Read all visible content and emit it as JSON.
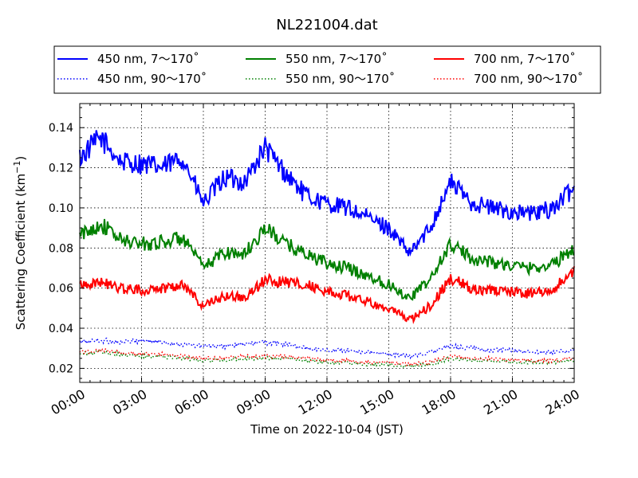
{
  "chart_data": {
    "type": "line",
    "title": "NL221004.dat",
    "xlabel": "Time on 2022-10-04 (JST)",
    "ylabel": "Scattering Coefficient (km",
    "ylabel_sup": "−1",
    "ylabel_end": ")",
    "xlim": [
      0,
      24
    ],
    "ylim": [
      0.013,
      0.152
    ],
    "grid": true,
    "legend_position": "top",
    "x_ticks": [
      {
        "value": 0,
        "label": "00:00"
      },
      {
        "value": 3,
        "label": "03:00"
      },
      {
        "value": 6,
        "label": "06:00"
      },
      {
        "value": 9,
        "label": "09:00"
      },
      {
        "value": 12,
        "label": "12:00"
      },
      {
        "value": 15,
        "label": "15:00"
      },
      {
        "value": 18,
        "label": "18:00"
      },
      {
        "value": 21,
        "label": "21:00"
      },
      {
        "value": 24,
        "label": "24:00"
      }
    ],
    "y_ticks": [
      {
        "value": 0.02,
        "label": "0.02"
      },
      {
        "value": 0.04,
        "label": "0.04"
      },
      {
        "value": 0.06,
        "label": "0.06"
      },
      {
        "value": 0.08,
        "label": "0.08"
      },
      {
        "value": 0.1,
        "label": "0.10"
      },
      {
        "value": 0.12,
        "label": "0.12"
      },
      {
        "value": 0.14,
        "label": "0.14"
      }
    ],
    "x": [
      0,
      1,
      2,
      3,
      4,
      5,
      6,
      7,
      8,
      9,
      10,
      11,
      12,
      13,
      14,
      15,
      16,
      17,
      18,
      19,
      20,
      21,
      22,
      23,
      24
    ],
    "series": [
      {
        "name": "450 nm, 7～170˚",
        "color": "#0000ff",
        "style": "solid",
        "values": [
          0.125,
          0.135,
          0.123,
          0.122,
          0.12,
          0.125,
          0.102,
          0.115,
          0.113,
          0.13,
          0.117,
          0.106,
          0.102,
          0.1,
          0.095,
          0.09,
          0.077,
          0.09,
          0.113,
          0.103,
          0.1,
          0.098,
          0.097,
          0.1,
          0.11
        ]
      },
      {
        "name": "450 nm, 90～170˚",
        "color": "#0000ff",
        "style": "dotted",
        "values": [
          0.033,
          0.034,
          0.033,
          0.034,
          0.033,
          0.032,
          0.031,
          0.031,
          0.032,
          0.033,
          0.032,
          0.03,
          0.029,
          0.029,
          0.028,
          0.027,
          0.026,
          0.028,
          0.031,
          0.03,
          0.029,
          0.029,
          0.028,
          0.028,
          0.029
        ]
      },
      {
        "name": "550 nm, 7～170˚",
        "color": "#008000",
        "style": "solid",
        "values": [
          0.086,
          0.092,
          0.084,
          0.082,
          0.083,
          0.085,
          0.07,
          0.078,
          0.077,
          0.09,
          0.082,
          0.077,
          0.072,
          0.07,
          0.066,
          0.062,
          0.055,
          0.064,
          0.082,
          0.075,
          0.073,
          0.071,
          0.07,
          0.072,
          0.08
        ]
      },
      {
        "name": "550 nm, 90～170˚",
        "color": "#008000",
        "style": "dotted",
        "values": [
          0.027,
          0.028,
          0.027,
          0.026,
          0.026,
          0.025,
          0.024,
          0.024,
          0.025,
          0.025,
          0.025,
          0.024,
          0.023,
          0.023,
          0.022,
          0.022,
          0.021,
          0.022,
          0.025,
          0.024,
          0.024,
          0.023,
          0.023,
          0.023,
          0.024
        ]
      },
      {
        "name": "700 nm, 7～170˚",
        "color": "#ff0000",
        "style": "solid",
        "values": [
          0.062,
          0.063,
          0.06,
          0.059,
          0.06,
          0.062,
          0.051,
          0.056,
          0.055,
          0.064,
          0.063,
          0.062,
          0.058,
          0.056,
          0.053,
          0.05,
          0.044,
          0.051,
          0.065,
          0.06,
          0.059,
          0.058,
          0.057,
          0.06,
          0.068
        ]
      },
      {
        "name": "700 nm, 90～170˚",
        "color": "#ff0000",
        "style": "dotted",
        "values": [
          0.028,
          0.029,
          0.028,
          0.027,
          0.027,
          0.026,
          0.025,
          0.025,
          0.026,
          0.026,
          0.026,
          0.025,
          0.024,
          0.024,
          0.023,
          0.023,
          0.022,
          0.023,
          0.026,
          0.025,
          0.025,
          0.024,
          0.024,
          0.024,
          0.025
        ]
      }
    ]
  }
}
